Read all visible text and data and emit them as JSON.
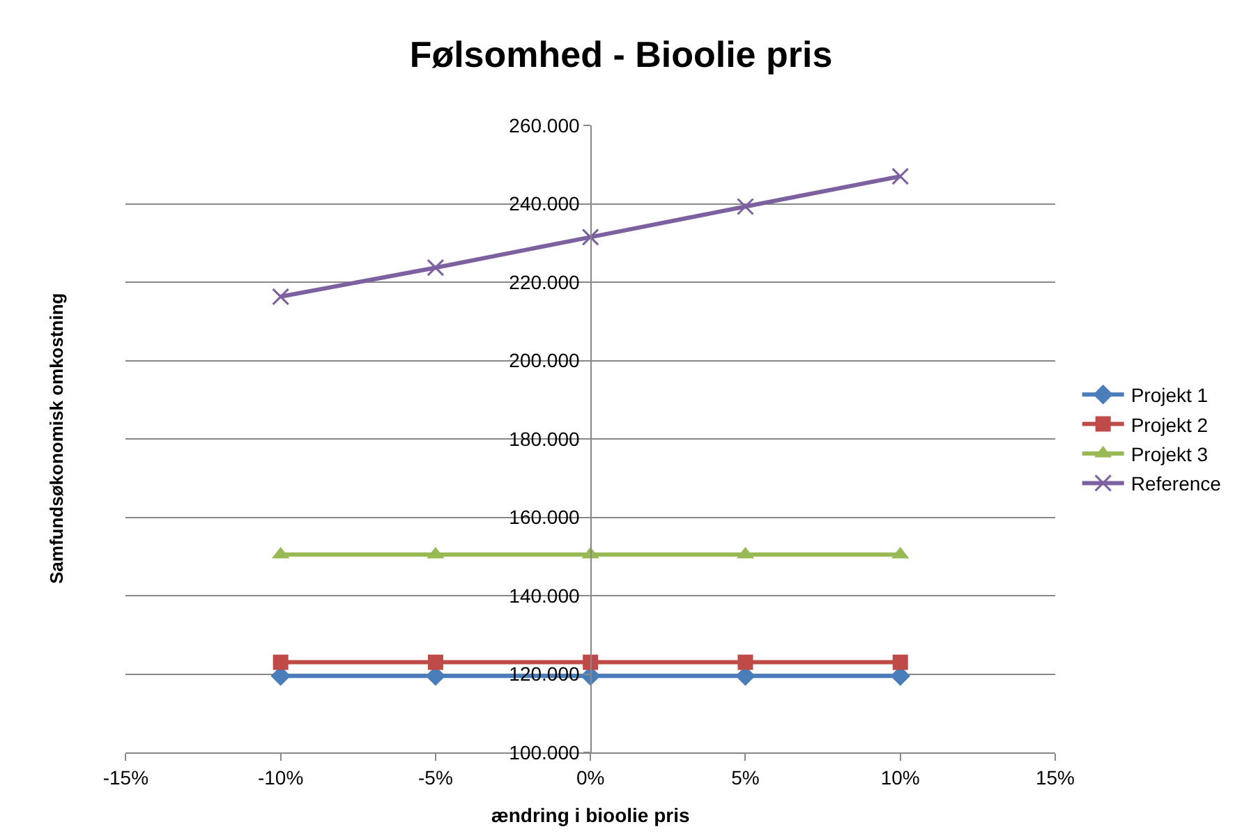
{
  "chart_data": {
    "type": "line",
    "title": "Følsomhed - Bioolie pris",
    "xlabel": "ændring i bioolie pris",
    "ylabel": "Samfundsøkonomisk omkostning",
    "x": [
      -10,
      -5,
      0,
      5,
      10
    ],
    "series": [
      {
        "name": "Projekt 1",
        "color": "#4a7ebb",
        "marker": "diamond",
        "values": [
          119500,
          119500,
          119500,
          119500,
          119500
        ]
      },
      {
        "name": "Projekt 2",
        "color": "#be4b48",
        "marker": "square",
        "values": [
          123000,
          123000,
          123000,
          123000,
          123000
        ]
      },
      {
        "name": "Projekt 3",
        "color": "#98b954",
        "marker": "triangle",
        "values": [
          150500,
          150500,
          150500,
          150500,
          150500
        ]
      },
      {
        "name": "Reference",
        "color": "#7d60a0",
        "marker": "cross",
        "values": [
          216300,
          223700,
          231500,
          239300,
          247000
        ]
      }
    ],
    "xlim": [
      -15,
      15
    ],
    "xticks": [
      {
        "value": -15,
        "label": "-15%"
      },
      {
        "value": -10,
        "label": "-10%"
      },
      {
        "value": -5,
        "label": "-5%"
      },
      {
        "value": 0,
        "label": "0%"
      },
      {
        "value": 5,
        "label": "5%"
      },
      {
        "value": 10,
        "label": "10%"
      },
      {
        "value": 15,
        "label": "15%"
      }
    ],
    "ylim": [
      100000,
      260000
    ],
    "yticks": [
      {
        "value": 100000,
        "label": "100.000"
      },
      {
        "value": 120000,
        "label": "120.000"
      },
      {
        "value": 140000,
        "label": "140.000"
      },
      {
        "value": 160000,
        "label": "160.000"
      },
      {
        "value": 180000,
        "label": "180.000"
      },
      {
        "value": 200000,
        "label": "200.000"
      },
      {
        "value": 220000,
        "label": "220.000"
      },
      {
        "value": 240000,
        "label": "240.000"
      },
      {
        "value": 260000,
        "label": "260.000"
      }
    ],
    "grid": "y",
    "legend": "right",
    "line_style": "solid"
  }
}
